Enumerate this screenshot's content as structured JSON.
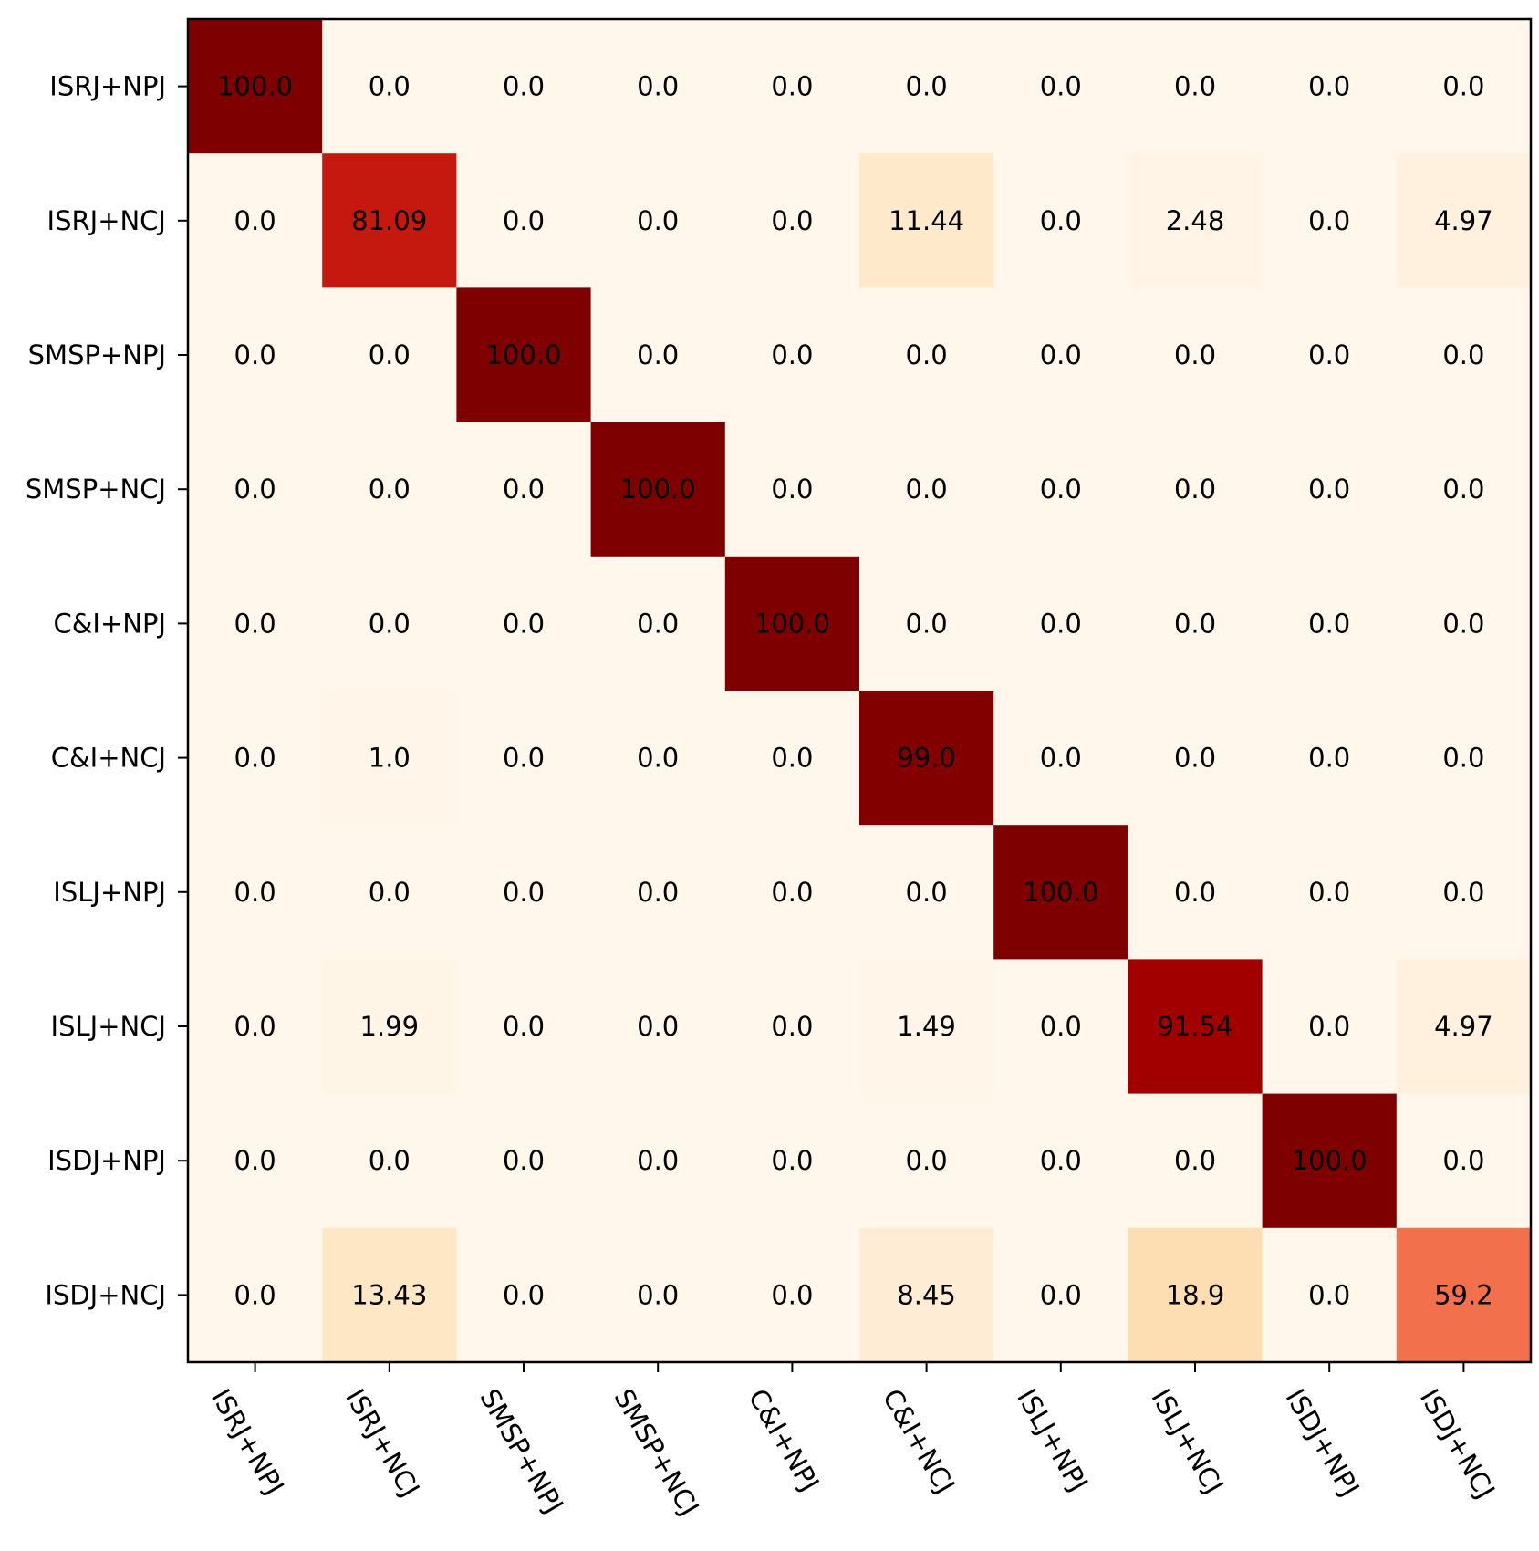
{
  "chart_data": {
    "type": "heatmap",
    "title": "",
    "xlabel": "",
    "ylabel": "",
    "colormap": "OrRd",
    "vmin": 0,
    "vmax": 100,
    "row_labels": [
      "ISRJ+NPJ",
      "ISRJ+NCJ",
      "SMSP+NPJ",
      "SMSP+NCJ",
      "C&I+NPJ",
      "C&I+NCJ",
      "ISLJ+NPJ",
      "ISLJ+NCJ",
      "ISDJ+NPJ",
      "ISDJ+NCJ"
    ],
    "col_labels": [
      "ISRJ+NPJ",
      "ISRJ+NCJ",
      "SMSP+NPJ",
      "SMSP+NCJ",
      "C&I+NPJ",
      "C&I+NCJ",
      "ISLJ+NPJ",
      "ISLJ+NCJ",
      "ISDJ+NPJ",
      "ISDJ+NCJ"
    ],
    "values": [
      [
        100.0,
        0.0,
        0.0,
        0.0,
        0.0,
        0.0,
        0.0,
        0.0,
        0.0,
        0.0
      ],
      [
        0.0,
        81.09,
        0.0,
        0.0,
        0.0,
        11.44,
        0.0,
        2.48,
        0.0,
        4.97
      ],
      [
        0.0,
        0.0,
        100.0,
        0.0,
        0.0,
        0.0,
        0.0,
        0.0,
        0.0,
        0.0
      ],
      [
        0.0,
        0.0,
        0.0,
        100.0,
        0.0,
        0.0,
        0.0,
        0.0,
        0.0,
        0.0
      ],
      [
        0.0,
        0.0,
        0.0,
        0.0,
        100.0,
        0.0,
        0.0,
        0.0,
        0.0,
        0.0
      ],
      [
        0.0,
        1.0,
        0.0,
        0.0,
        0.0,
        99.0,
        0.0,
        0.0,
        0.0,
        0.0
      ],
      [
        0.0,
        0.0,
        0.0,
        0.0,
        0.0,
        0.0,
        100.0,
        0.0,
        0.0,
        0.0
      ],
      [
        0.0,
        1.99,
        0.0,
        0.0,
        0.0,
        1.49,
        0.0,
        91.54,
        0.0,
        4.97
      ],
      [
        0.0,
        0.0,
        0.0,
        0.0,
        0.0,
        0.0,
        0.0,
        0.0,
        100.0,
        0.0
      ],
      [
        0.0,
        13.43,
        0.0,
        0.0,
        0.0,
        8.45,
        0.0,
        18.9,
        0.0,
        59.2
      ]
    ],
    "value_labels": [
      [
        "100.0",
        "0.0",
        "0.0",
        "0.0",
        "0.0",
        "0.0",
        "0.0",
        "0.0",
        "0.0",
        "0.0"
      ],
      [
        "0.0",
        "81.09",
        "0.0",
        "0.0",
        "0.0",
        "11.44",
        "0.0",
        "2.48",
        "0.0",
        "4.97"
      ],
      [
        "0.0",
        "0.0",
        "100.0",
        "0.0",
        "0.0",
        "0.0",
        "0.0",
        "0.0",
        "0.0",
        "0.0"
      ],
      [
        "0.0",
        "0.0",
        "0.0",
        "100.0",
        "0.0",
        "0.0",
        "0.0",
        "0.0",
        "0.0",
        "0.0"
      ],
      [
        "0.0",
        "0.0",
        "0.0",
        "0.0",
        "100.0",
        "0.0",
        "0.0",
        "0.0",
        "0.0",
        "0.0"
      ],
      [
        "0.0",
        "1.0",
        "0.0",
        "0.0",
        "0.0",
        "99.0",
        "0.0",
        "0.0",
        "0.0",
        "0.0"
      ],
      [
        "0.0",
        "0.0",
        "0.0",
        "0.0",
        "0.0",
        "0.0",
        "100.0",
        "0.0",
        "0.0",
        "0.0"
      ],
      [
        "0.0",
        "1.99",
        "0.0",
        "0.0",
        "0.0",
        "1.49",
        "0.0",
        "91.54",
        "0.0",
        "4.97"
      ],
      [
        "0.0",
        "0.0",
        "0.0",
        "0.0",
        "0.0",
        "0.0",
        "0.0",
        "0.0",
        "100.0",
        "0.0"
      ],
      [
        "0.0",
        "13.43",
        "0.0",
        "0.0",
        "0.0",
        "8.45",
        "0.0",
        "18.9",
        "0.0",
        "59.2"
      ]
    ],
    "grid": false,
    "x_tick_rotation": "-60 degrees"
  }
}
